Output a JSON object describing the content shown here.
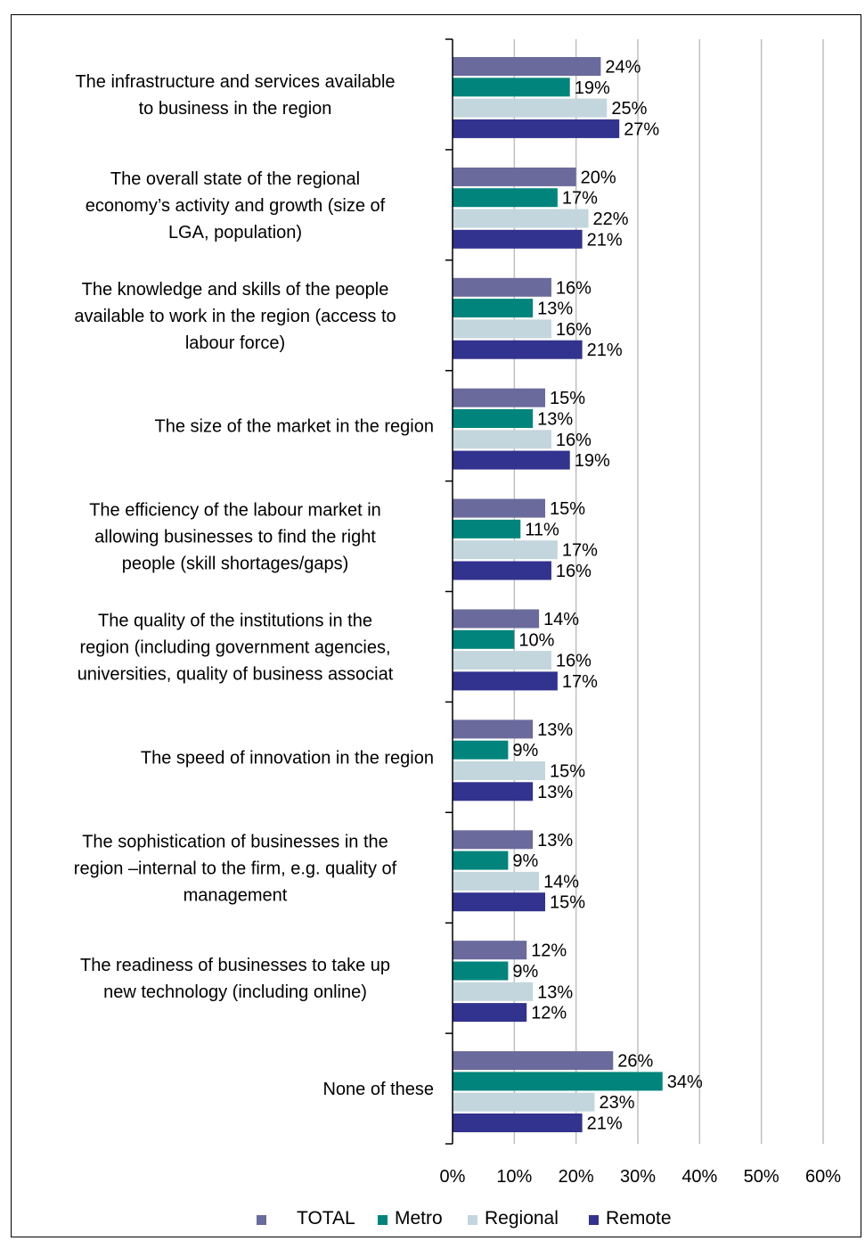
{
  "chart_data": {
    "type": "bar",
    "orientation": "horizontal",
    "categories": [
      [
        "The infrastructure and services available",
        "to business in the region"
      ],
      [
        "The overall state of the regional",
        "economy’s activity and growth (size of",
        "LGA, population)"
      ],
      [
        "The knowledge and skills of the people",
        "available to work in the region (access to",
        "labour force)"
      ],
      [
        "The size of the market in the region"
      ],
      [
        "The efficiency of the labour market in",
        "allowing businesses to find the right",
        "people (skill shortages/gaps)"
      ],
      [
        "The quality of the institutions in the",
        "region (including government agencies,",
        "universities, quality of business associat"
      ],
      [
        "The speed of innovation in the region"
      ],
      [
        "The sophistication of businesses in the",
        "region –internal to the firm, e.g. quality of",
        "management"
      ],
      [
        "The readiness of businesses to take up",
        "new technology (including online)"
      ],
      [
        "None of these"
      ]
    ],
    "series": [
      {
        "name": "TOTAL",
        "color": "#6a6a9c",
        "values": [
          24,
          20,
          16,
          15,
          15,
          14,
          13,
          13,
          12,
          26
        ]
      },
      {
        "name": "Metro",
        "color": "#00847c",
        "values": [
          19,
          17,
          13,
          13,
          11,
          10,
          9,
          9,
          9,
          34
        ]
      },
      {
        "name": "Regional",
        "color": "#c3d6dd",
        "values": [
          25,
          22,
          16,
          16,
          17,
          16,
          15,
          14,
          13,
          23
        ]
      },
      {
        "name": "Remote",
        "color": "#32328f",
        "values": [
          27,
          21,
          21,
          19,
          16,
          17,
          13,
          15,
          12,
          21
        ]
      }
    ],
    "value_suffix": "%",
    "xlim": [
      0,
      60
    ],
    "xticks": [
      "0%",
      "10%",
      "20%",
      "30%",
      "40%",
      "50%",
      "60%"
    ],
    "grid": true,
    "legend_position": "bottom"
  }
}
